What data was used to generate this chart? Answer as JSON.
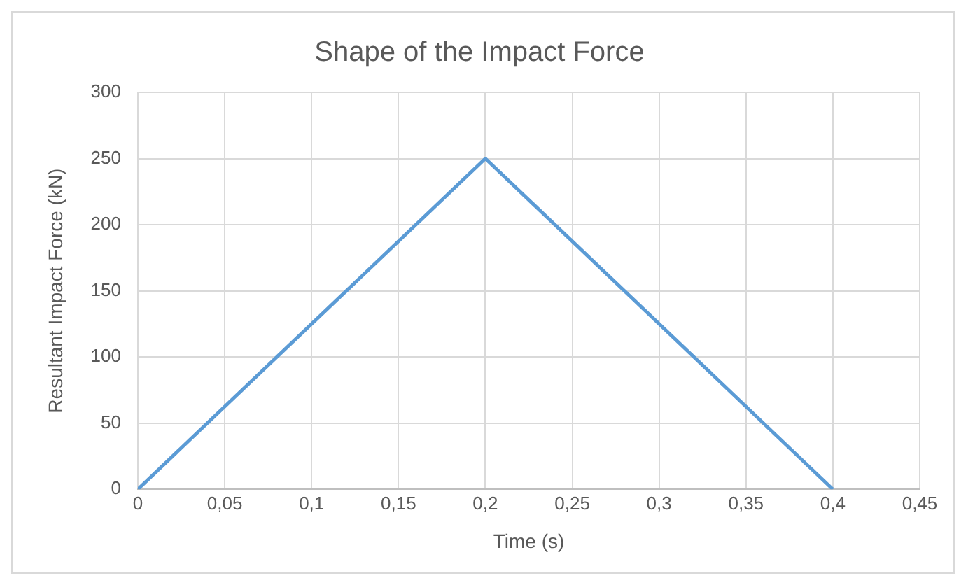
{
  "chart_data": {
    "type": "line",
    "title": "Shape of the Impact Force",
    "xlabel": "Time (s)",
    "ylabel": "Resultant Impact Force (kN)",
    "x": [
      0,
      0.2,
      0.4
    ],
    "series": [
      {
        "color": "#5b9bd5",
        "values": [
          0,
          250,
          0
        ]
      }
    ],
    "xlim": [
      0,
      0.45
    ],
    "xticks": [
      0,
      {
        "value": 0.05,
        "label": "0,05"
      },
      {
        "value": 0.1,
        "label": "0,1"
      },
      {
        "value": 0.15,
        "label": "0,15"
      },
      {
        "value": 0.2,
        "label": "0,2"
      },
      {
        "value": 0.25,
        "label": "0,25"
      },
      {
        "value": 0.3,
        "label": "0,3"
      },
      {
        "value": 0.35,
        "label": "0,35"
      },
      {
        "value": 0.4,
        "label": "0,4"
      },
      {
        "value": 0.45,
        "label": "0,45"
      }
    ],
    "ylim": [
      0,
      300
    ],
    "yticks": [
      0,
      50,
      100,
      150,
      200,
      250,
      300
    ],
    "grid": true,
    "legend": false,
    "marker": "none",
    "line_style": "solid"
  }
}
